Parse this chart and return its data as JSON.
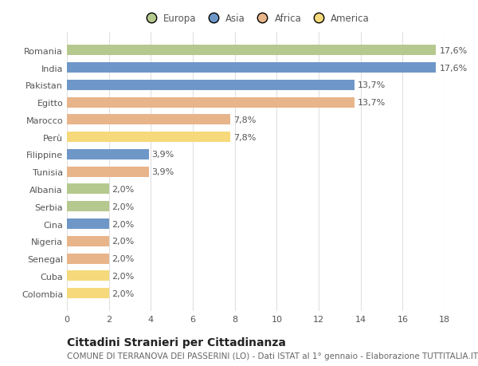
{
  "categories": [
    "Romania",
    "India",
    "Pakistan",
    "Egitto",
    "Marocco",
    "Perù",
    "Filippine",
    "Tunisia",
    "Albania",
    "Serbia",
    "Cina",
    "Nigeria",
    "Senegal",
    "Cuba",
    "Colombia"
  ],
  "values": [
    17.6,
    17.6,
    13.7,
    13.7,
    7.8,
    7.8,
    3.9,
    3.9,
    2.0,
    2.0,
    2.0,
    2.0,
    2.0,
    2.0,
    2.0
  ],
  "labels": [
    "17,6%",
    "17,6%",
    "13,7%",
    "13,7%",
    "7,8%",
    "7,8%",
    "3,9%",
    "3,9%",
    "2,0%",
    "2,0%",
    "2,0%",
    "2,0%",
    "2,0%",
    "2,0%",
    "2,0%"
  ],
  "colors": [
    "#b5c98e",
    "#6e97c8",
    "#6e97c8",
    "#e8b48a",
    "#e8b48a",
    "#f5d97a",
    "#6e97c8",
    "#e8b48a",
    "#b5c98e",
    "#b5c98e",
    "#6e97c8",
    "#e8b48a",
    "#e8b48a",
    "#f5d97a",
    "#f5d97a"
  ],
  "legend_labels": [
    "Europa",
    "Asia",
    "Africa",
    "America"
  ],
  "legend_colors": [
    "#b5c98e",
    "#6e97c8",
    "#e8b48a",
    "#f5d97a"
  ],
  "title": "Cittadini Stranieri per Cittadinanza",
  "subtitle": "COMUNE DI TERRANOVA DEI PASSERINI (LO) - Dati ISTAT al 1° gennaio - Elaborazione TUTTITALIA.IT",
  "xlim": [
    0,
    18
  ],
  "xticks": [
    0,
    2,
    4,
    6,
    8,
    10,
    12,
    14,
    16,
    18
  ],
  "background_color": "#ffffff",
  "plot_background": "#ffffff",
  "grid_color": "#e0e0e0",
  "title_fontsize": 10,
  "subtitle_fontsize": 7.5,
  "label_fontsize": 8,
  "tick_fontsize": 8,
  "legend_fontsize": 8.5
}
